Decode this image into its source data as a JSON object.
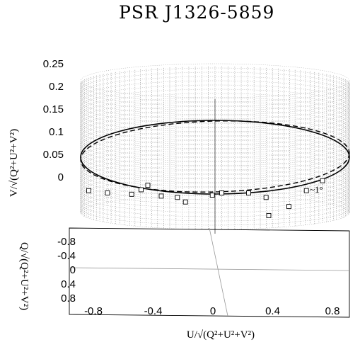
{
  "chart_data": {
    "type": "scatter",
    "title": "PSR J1326-5859",
    "xlabel": "U/√(Q²+U²+V²)",
    "ylabel": "V/√(Q²+U²+V²)",
    "zlabel": "Q/√(Q²+U²+V²)",
    "x_ticks": [
      "-0.8",
      "-0.4",
      "0",
      "0.4",
      "0.8"
    ],
    "x_tick_values": [
      -0.8,
      -0.4,
      0,
      0.4,
      0.8
    ],
    "z_ticks": [
      "-0.8",
      "-0.4",
      "0",
      "0.4",
      "0.8"
    ],
    "z_tick_values": [
      -0.8,
      -0.4,
      0,
      0.4,
      0.8
    ],
    "y_ticks": [
      "0",
      "0.05",
      "0.1",
      "0.15",
      "0.2",
      "0.25"
    ],
    "y_tick_values": [
      0,
      0.05,
      0.1,
      0.15,
      0.2,
      0.25
    ],
    "xlim": [
      -1,
      1
    ],
    "zlim": [
      -1,
      1
    ],
    "ylim": [
      -0.1,
      0.25
    ],
    "annotation": "~1°",
    "points": [
      {
        "x": -0.94,
        "v": -0.03
      },
      {
        "x": -0.8,
        "v": -0.035
      },
      {
        "x": -0.62,
        "v": -0.038
      },
      {
        "x": -0.55,
        "v": -0.028
      },
      {
        "x": -0.5,
        "v": -0.018
      },
      {
        "x": -0.4,
        "v": -0.042
      },
      {
        "x": -0.28,
        "v": -0.045
      },
      {
        "x": -0.22,
        "v": -0.055
      },
      {
        "x": -0.02,
        "v": -0.04
      },
      {
        "x": 0.05,
        "v": -0.035
      },
      {
        "x": 0.25,
        "v": -0.035
      },
      {
        "x": 0.38,
        "v": -0.045
      },
      {
        "x": 0.55,
        "v": -0.065
      },
      {
        "x": 0.68,
        "v": -0.03
      },
      {
        "x": 0.8,
        "v": -0.008
      },
      {
        "x": 0.4,
        "v": -0.085
      }
    ],
    "surface": "vertical cylinder mesh of unit radius",
    "curves": [
      "solid ellipse (fit)",
      "dashed ellipse (tilted ~1°)"
    ]
  },
  "colors": {
    "ink": "#000000",
    "mesh": "#8c8c8c",
    "baseline": "#999999"
  }
}
